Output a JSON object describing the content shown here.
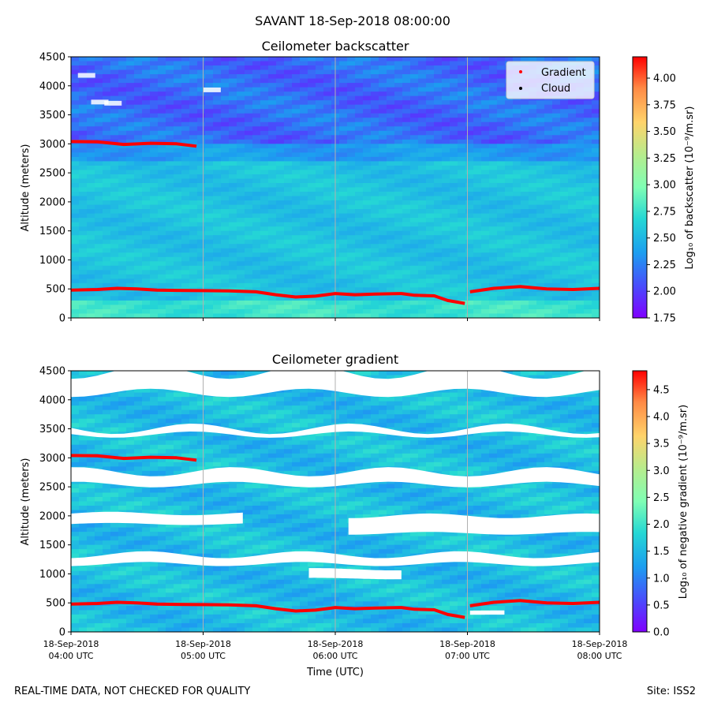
{
  "figure": {
    "suptitle": "SAVANT 18-Sep-2018 08:00:00",
    "footer_left": "REAL-TIME DATA, NOT CHECKED FOR QUALITY",
    "footer_right": "Site: ISS2"
  },
  "chart_data": [
    {
      "type": "heatmap",
      "title": "Ceilometer backscatter",
      "xlabel": "",
      "ylabel": "Altitude (meters)",
      "colorbar_label": "Log₁₀ of backscatter (10⁻⁹/m.sr)",
      "xlim": [
        4,
        8
      ],
      "ylim": [
        0,
        4500
      ],
      "yticks": [
        0,
        500,
        1000,
        1500,
        2000,
        2500,
        3000,
        3500,
        4000,
        4500
      ],
      "colorbar_range": [
        1.75,
        4.2
      ],
      "colorbar_ticks": [
        "1.75",
        "2.00",
        "2.25",
        "2.50",
        "2.75",
        "3.00",
        "3.25",
        "3.50",
        "3.75",
        "4.00"
      ],
      "legend": [
        "Gradient",
        "Cloud"
      ],
      "legend_position": "top-right",
      "vertical_grid_hours": [
        5,
        6,
        7
      ],
      "series": [
        {
          "name": "Gradient",
          "color": "#ff0000",
          "points": [
            [
              4.0,
              480
            ],
            [
              4.2,
              490
            ],
            [
              4.35,
              510
            ],
            [
              4.5,
              500
            ],
            [
              4.65,
              480
            ],
            [
              4.8,
              475
            ],
            [
              5.0,
              470
            ],
            [
              5.2,
              465
            ],
            [
              5.4,
              450
            ],
            [
              5.55,
              400
            ],
            [
              5.7,
              360
            ],
            [
              5.85,
              375
            ],
            [
              6.0,
              420
            ],
            [
              6.15,
              400
            ],
            [
              6.3,
              410
            ],
            [
              6.5,
              420
            ],
            [
              6.6,
              390
            ],
            [
              6.75,
              380
            ],
            [
              6.85,
              300
            ],
            [
              6.98,
              250
            ],
            [
              7.02,
              450
            ],
            [
              7.2,
              510
            ],
            [
              7.4,
              540
            ],
            [
              7.6,
              500
            ],
            [
              7.8,
              490
            ],
            [
              8.0,
              510
            ]
          ]
        },
        {
          "name": "Gradient (upper)",
          "color": "#ff0000",
          "points": [
            [
              4.0,
              3040
            ],
            [
              4.2,
              3035
            ],
            [
              4.4,
              2990
            ],
            [
              4.6,
              3010
            ],
            [
              4.8,
              3000
            ],
            [
              4.95,
              2960
            ]
          ]
        }
      ],
      "cloud_points": []
    },
    {
      "type": "heatmap",
      "title": "Ceilometer gradient",
      "xlabel": "Time (UTC)",
      "ylabel": "Altitude (meters)",
      "colorbar_label": "Log₁₀ of negative gradient (10⁻⁹/m.sr)",
      "xlim": [
        4,
        8
      ],
      "ylim": [
        0,
        4500
      ],
      "yticks": [
        0,
        500,
        1000,
        1500,
        2000,
        2500,
        3000,
        3500,
        4000,
        4500
      ],
      "xticks": [
        {
          "value": 4,
          "line1": "18-Sep-2018",
          "line2": "04:00 UTC"
        },
        {
          "value": 5,
          "line1": "18-Sep-2018",
          "line2": "05:00 UTC"
        },
        {
          "value": 6,
          "line1": "18-Sep-2018",
          "line2": "06:00 UTC"
        },
        {
          "value": 7,
          "line1": "18-Sep-2018",
          "line2": "07:00 UTC"
        },
        {
          "value": 8,
          "line1": "18-Sep-2018",
          "line2": "08:00 UTC"
        }
      ],
      "colorbar_range": [
        0,
        4.85
      ],
      "colorbar_ticks": [
        "0.0",
        "0.5",
        "1.0",
        "1.5",
        "2.0",
        "2.5",
        "3.0",
        "3.5",
        "4.0",
        "4.5"
      ],
      "vertical_grid_hours": [
        5,
        6,
        7
      ],
      "series": [
        {
          "name": "Gradient",
          "color": "#ff0000",
          "points": [
            [
              4.0,
              480
            ],
            [
              4.2,
              490
            ],
            [
              4.35,
              510
            ],
            [
              4.5,
              500
            ],
            [
              4.65,
              480
            ],
            [
              4.8,
              475
            ],
            [
              5.0,
              470
            ],
            [
              5.2,
              465
            ],
            [
              5.4,
              450
            ],
            [
              5.55,
              400
            ],
            [
              5.7,
              360
            ],
            [
              5.85,
              375
            ],
            [
              6.0,
              420
            ],
            [
              6.15,
              400
            ],
            [
              6.3,
              410
            ],
            [
              6.5,
              420
            ],
            [
              6.6,
              390
            ],
            [
              6.75,
              380
            ],
            [
              6.85,
              300
            ],
            [
              6.98,
              250
            ],
            [
              7.02,
              450
            ],
            [
              7.2,
              510
            ],
            [
              7.4,
              540
            ],
            [
              7.6,
              500
            ],
            [
              7.8,
              490
            ],
            [
              8.0,
              510
            ]
          ]
        },
        {
          "name": "Gradient (upper)",
          "color": "#ff0000",
          "points": [
            [
              4.0,
              3040
            ],
            [
              4.2,
              3035
            ],
            [
              4.4,
              2990
            ],
            [
              4.6,
              3010
            ],
            [
              4.8,
              3000
            ],
            [
              4.95,
              2960
            ]
          ]
        }
      ],
      "white_gaps": [
        {
          "t0": 4.0,
          "t1": 8.0,
          "z_center": 1250,
          "z_half": 80,
          "wobble": 60
        },
        {
          "t0": 6.1,
          "t1": 8.0,
          "z_center": 1850,
          "z_half": 150,
          "wobble": 40
        },
        {
          "t0": 4.0,
          "t1": 5.3,
          "z_center": 1950,
          "z_half": 90,
          "wobble": 30
        },
        {
          "t0": 4.0,
          "t1": 8.0,
          "z_center": 2650,
          "z_half": 110,
          "wobble": 80
        },
        {
          "t0": 4.0,
          "t1": 8.0,
          "z_center": 3450,
          "z_half": 50,
          "wobble": 90
        },
        {
          "t0": 4.0,
          "t1": 8.0,
          "z_center": 4300,
          "z_half": 180,
          "wobble": 120
        },
        {
          "t0": 5.8,
          "t1": 6.5,
          "z_center": 1000,
          "z_half": 80,
          "wobble": 20
        },
        {
          "t0": 7.02,
          "t1": 7.28,
          "z_center": 330,
          "z_half": 35,
          "wobble": 5
        }
      ]
    }
  ]
}
